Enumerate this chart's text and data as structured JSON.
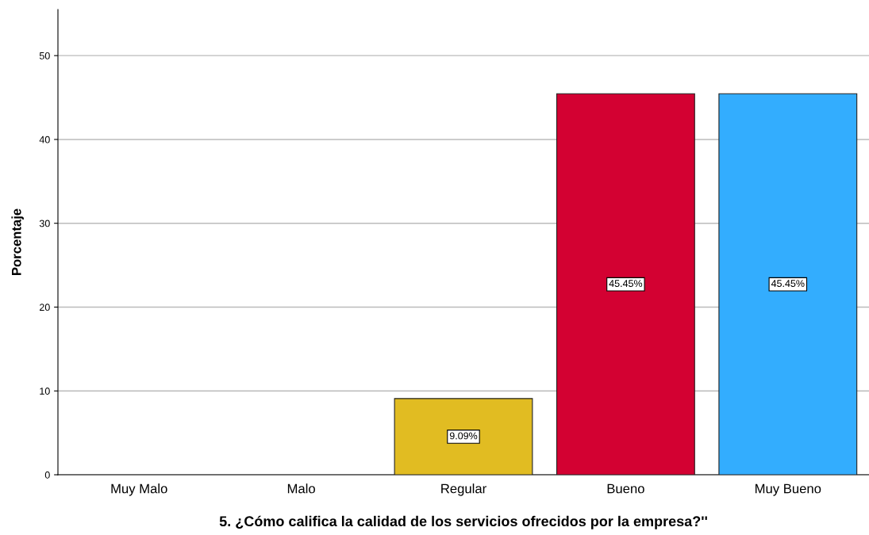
{
  "chart_data": {
    "type": "bar",
    "xlabel": "5. ¿Cómo califica la calidad de los servicios ofrecidos por la empresa?''",
    "ylabel": "Porcentaje",
    "categories": [
      "Muy Malo",
      "Malo",
      "Regular",
      "Bueno",
      "Muy Bueno"
    ],
    "values": [
      0,
      0,
      9.09,
      45.45,
      45.45
    ],
    "colors": [
      null,
      null,
      "#e1bc22",
      "#d30132",
      "#33adfe"
    ],
    "value_labels": [
      null,
      null,
      "9.09%",
      "45.45%",
      "45.45%"
    ],
    "ylim": [
      0,
      55.5
    ],
    "yticks": [
      0,
      10,
      20,
      30,
      40,
      50
    ],
    "grid": "y"
  }
}
